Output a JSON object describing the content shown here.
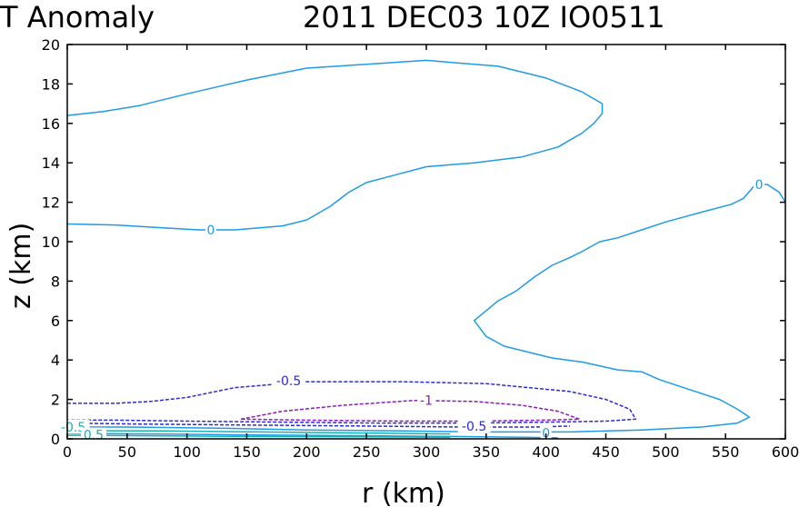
{
  "chart_data": {
    "type": "contour",
    "title_left": "T Anomaly",
    "title_right": "2011 DEC03 10Z  IO0511",
    "xlabel": "r (km)",
    "ylabel": "z (km)",
    "xlim": [
      0,
      600
    ],
    "ylim": [
      0,
      20
    ],
    "xticks": [
      0,
      50,
      100,
      150,
      200,
      250,
      300,
      350,
      400,
      450,
      500,
      550,
      600
    ],
    "yticks": [
      0,
      2,
      4,
      6,
      8,
      10,
      12,
      14,
      16,
      18,
      20
    ],
    "colors": {
      "zero": "#1e9be6",
      "neg05": "#2a2ad8",
      "neg1": "#8a1ab8",
      "teal": "#10b4b4"
    },
    "contours": [
      {
        "level": "0",
        "color": "zero",
        "dash": false,
        "points": [
          [
            0,
            10.9
          ],
          [
            40,
            10.85
          ],
          [
            80,
            10.7
          ],
          [
            110,
            10.6
          ],
          [
            140,
            10.6
          ],
          [
            180,
            10.8
          ],
          [
            200,
            11.1
          ],
          [
            220,
            11.8
          ],
          [
            235,
            12.5
          ],
          [
            250,
            13.0
          ],
          [
            275,
            13.4
          ],
          [
            300,
            13.8
          ],
          [
            340,
            14.0
          ],
          [
            380,
            14.3
          ],
          [
            410,
            14.8
          ],
          [
            430,
            15.5
          ],
          [
            440,
            16.0
          ],
          [
            447,
            16.5
          ],
          [
            447,
            17.0
          ],
          [
            430,
            17.6
          ],
          [
            400,
            18.3
          ],
          [
            360,
            18.9
          ],
          [
            300,
            19.2
          ],
          [
            250,
            19.0
          ],
          [
            200,
            18.8
          ],
          [
            150,
            18.2
          ],
          [
            100,
            17.5
          ],
          [
            60,
            16.9
          ],
          [
            30,
            16.6
          ],
          [
            0,
            16.4
          ]
        ]
      },
      {
        "level": "0",
        "color": "zero",
        "dash": false,
        "points": [
          [
            600,
            12.0
          ],
          [
            595,
            12.5
          ],
          [
            585,
            12.9
          ],
          [
            575,
            12.9
          ],
          [
            565,
            12.2
          ],
          [
            555,
            11.9
          ],
          [
            530,
            11.5
          ],
          [
            500,
            11.0
          ],
          [
            480,
            10.6
          ],
          [
            460,
            10.2
          ],
          [
            445,
            10.0
          ],
          [
            430,
            9.5
          ],
          [
            420,
            9.2
          ],
          [
            405,
            8.8
          ],
          [
            390,
            8.2
          ],
          [
            375,
            7.5
          ],
          [
            360,
            7.0
          ],
          [
            350,
            6.5
          ],
          [
            340,
            6.0
          ],
          [
            350,
            5.2
          ],
          [
            365,
            4.7
          ],
          [
            385,
            4.4
          ],
          [
            405,
            4.1
          ],
          [
            430,
            3.9
          ],
          [
            460,
            3.5
          ],
          [
            480,
            3.4
          ],
          [
            495,
            3.0
          ],
          [
            520,
            2.5
          ],
          [
            545,
            2.0
          ],
          [
            560,
            1.5
          ],
          [
            570,
            1.1
          ],
          [
            560,
            0.8
          ],
          [
            530,
            0.6
          ],
          [
            480,
            0.45
          ],
          [
            420,
            0.35
          ],
          [
            350,
            0.35
          ],
          [
            280,
            0.4
          ],
          [
            200,
            0.45
          ],
          [
            120,
            0.55
          ],
          [
            50,
            0.6
          ],
          [
            0,
            0.6
          ]
        ]
      },
      {
        "level": "0",
        "color": "zero",
        "dash": false,
        "points": [
          [
            0,
            0.28
          ],
          [
            80,
            0.24
          ],
          [
            160,
            0.2
          ],
          [
            240,
            0.16
          ],
          [
            320,
            0.12
          ],
          [
            380,
            0.08
          ],
          [
            410,
            0.05
          ]
        ]
      },
      {
        "level": "-0.5",
        "color": "neg05",
        "dash": true,
        "points": [
          [
            0,
            1.8
          ],
          [
            40,
            1.8
          ],
          [
            70,
            1.9
          ],
          [
            100,
            2.1
          ],
          [
            140,
            2.6
          ],
          [
            200,
            2.9
          ],
          [
            280,
            2.9
          ],
          [
            350,
            2.8
          ],
          [
            420,
            2.4
          ],
          [
            450,
            2.0
          ],
          [
            470,
            1.5
          ],
          [
            475,
            1.0
          ],
          [
            450,
            0.9
          ],
          [
            400,
            0.85
          ],
          [
            340,
            0.8
          ],
          [
            260,
            0.8
          ],
          [
            180,
            0.85
          ],
          [
            100,
            0.9
          ],
          [
            40,
            0.95
          ],
          [
            0,
            0.95
          ]
        ]
      },
      {
        "level": "-1",
        "color": "neg1",
        "dash": true,
        "points": [
          [
            145,
            1.0
          ],
          [
            180,
            1.4
          ],
          [
            230,
            1.7
          ],
          [
            290,
            1.95
          ],
          [
            340,
            1.9
          ],
          [
            380,
            1.7
          ],
          [
            410,
            1.4
          ],
          [
            428,
            1.0
          ],
          [
            400,
            0.95
          ],
          [
            340,
            0.9
          ],
          [
            280,
            0.9
          ],
          [
            200,
            0.95
          ],
          [
            145,
            1.0
          ]
        ]
      },
      {
        "level": "-0.5",
        "color": "neg05",
        "dash": true,
        "points": [
          [
            0,
            0.8
          ],
          [
            60,
            0.75
          ],
          [
            150,
            0.7
          ],
          [
            250,
            0.65
          ],
          [
            330,
            0.6
          ],
          [
            390,
            0.6
          ],
          [
            420,
            0.65
          ]
        ]
      },
      {
        "level": "-0.5",
        "color": "teal",
        "dash": false,
        "points": [
          [
            0,
            0.42
          ],
          [
            80,
            0.4
          ],
          [
            160,
            0.35
          ],
          [
            240,
            0.3
          ],
          [
            320,
            0.25
          ]
        ]
      },
      {
        "level": "0.5",
        "color": "teal",
        "dash": false,
        "points": [
          [
            0,
            0.18
          ],
          [
            80,
            0.15
          ],
          [
            160,
            0.12
          ],
          [
            240,
            0.1
          ],
          [
            320,
            0.08
          ]
        ]
      }
    ],
    "contour_labels": [
      {
        "text": "0",
        "x": 120,
        "y": 10.6,
        "color": "zero"
      },
      {
        "text": "0",
        "x": 578,
        "y": 12.9,
        "color": "zero"
      },
      {
        "text": "0",
        "x": 400,
        "y": 0.3,
        "color": "zero"
      },
      {
        "text": "-0.5",
        "x": 185,
        "y": 2.95,
        "color": "neg05"
      },
      {
        "text": "-0.5",
        "x": 340,
        "y": 0.65,
        "color": "neg05"
      },
      {
        "text": "-1",
        "x": 300,
        "y": 1.95,
        "color": "neg1"
      },
      {
        "text": "-0.5",
        "x": 5,
        "y": 0.6,
        "color": "teal"
      },
      {
        "text": "0.5",
        "x": 22,
        "y": 0.2,
        "color": "teal"
      }
    ]
  }
}
